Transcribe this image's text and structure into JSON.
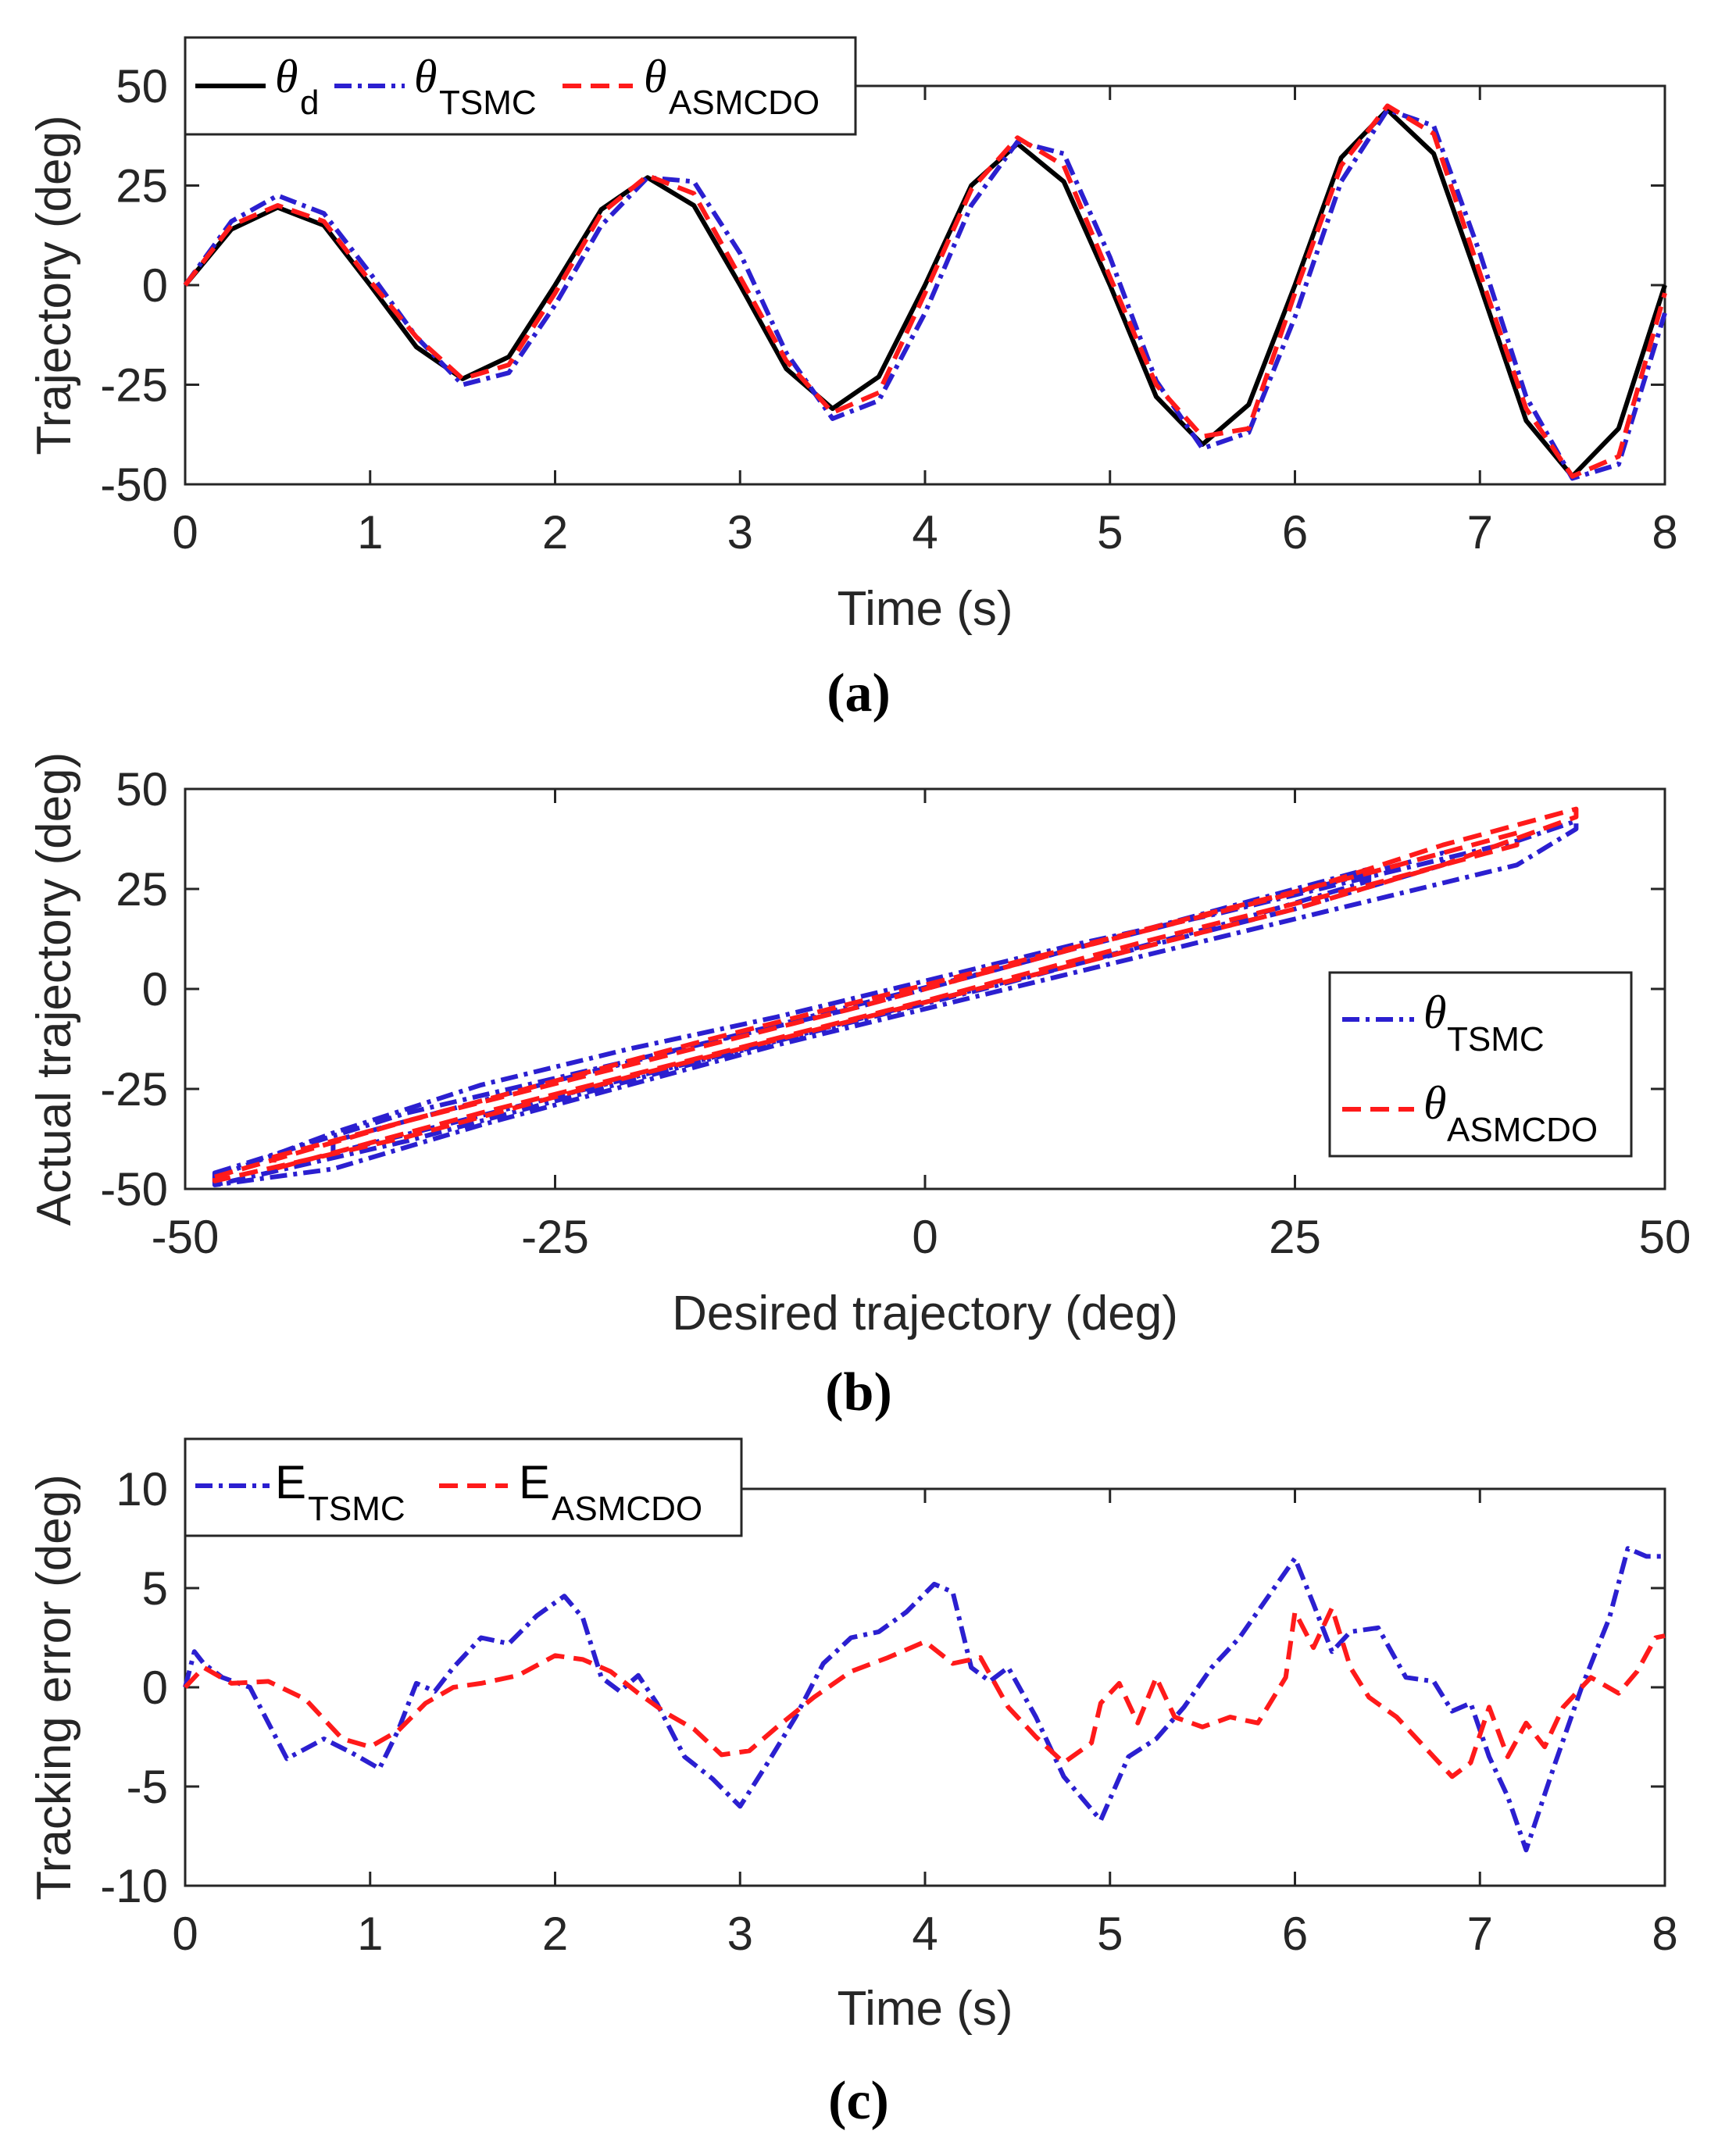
{
  "chart_data": [
    {
      "type": "line",
      "panel_label": "(a)",
      "xlabel": "Time (s)",
      "ylabel": "Trajectory (deg)",
      "xlim": [
        0,
        8
      ],
      "ylim": [
        -50,
        50
      ],
      "xticks": [
        0,
        1,
        2,
        3,
        4,
        5,
        6,
        7,
        8
      ],
      "yticks": [
        50,
        25,
        0,
        -25,
        -50
      ],
      "grid": false,
      "legend_placement": "top-left, horizontal",
      "x": [
        0,
        0.25,
        0.5,
        0.75,
        1,
        1.25,
        1.5,
        1.75,
        2,
        2.25,
        2.5,
        2.75,
        3,
        3.25,
        3.5,
        3.75,
        4,
        4.25,
        4.5,
        4.75,
        5,
        5.25,
        5.5,
        5.75,
        6,
        6.25,
        6.5,
        6.75,
        7,
        7.25,
        7.5,
        7.75,
        8
      ],
      "series": [
        {
          "name": "θ",
          "sub": "d",
          "color": "#000000",
          "style": "solid",
          "values": [
            0,
            14,
            19.5,
            15,
            0,
            -15.5,
            -23.5,
            -18,
            0,
            19,
            27,
            20,
            0,
            -21,
            -31,
            -23,
            0,
            25,
            35.5,
            26,
            0,
            -28,
            -40,
            -30,
            0,
            32,
            44,
            33,
            0,
            -34,
            -48,
            -36,
            0
          ]
        },
        {
          "name": "θ",
          "sub": "TSMC",
          "color": "#2b1fd0",
          "style": "dashdot",
          "values": [
            0,
            16,
            22.5,
            18,
            3,
            -13,
            -25,
            -22,
            -5,
            15,
            27,
            26,
            8,
            -17,
            -33.5,
            -29,
            -7,
            20,
            36,
            33,
            7,
            -24,
            -41,
            -37,
            -8,
            26,
            44,
            40,
            8,
            -28,
            -48.5,
            -45,
            -7
          ]
        },
        {
          "name": "θ",
          "sub": "ASMCDO",
          "color": "#ff1a1a",
          "style": "dashed",
          "values": [
            0,
            15,
            20,
            16,
            1,
            -13,
            -23.5,
            -20,
            -2,
            18,
            27.5,
            23,
            2,
            -19,
            -32,
            -27,
            -2,
            24,
            37,
            30,
            2,
            -25,
            -38,
            -36,
            -2,
            30,
            45,
            38,
            3,
            -31,
            -48,
            -43,
            -2
          ]
        }
      ]
    },
    {
      "type": "line",
      "panel_label": "(b)",
      "xlabel": "Desired trajectory (deg)",
      "ylabel": "Actual trajectory  (deg)",
      "xlim": [
        -50,
        50
      ],
      "ylim": [
        -50,
        50
      ],
      "xticks": [
        -50,
        -25,
        0,
        25,
        50
      ],
      "yticks": [
        50,
        25,
        0,
        -25,
        -50
      ],
      "grid": false,
      "legend_placement": "right, vertical",
      "series": [
        {
          "name": "θ",
          "sub": "TSMC",
          "color": "#2b1fd0",
          "style": "dashdot",
          "loops": [
            {
              "x": [
                -48,
                -40,
                -30,
                -20,
                -10,
                0,
                10,
                20,
                30,
                40,
                44
              ],
              "upper": [
                -47,
                -36,
                -24,
                -15,
                -7,
                2,
                11,
                19,
                28,
                37,
                42
              ],
              "lower": [
                -49,
                -45,
                -34,
                -24,
                -14,
                -5,
                4,
                13,
                22,
                31,
                40
              ]
            },
            {
              "x": [
                -48,
                -35,
                -20,
                -5,
                10,
                25,
                35
              ],
              "upper": [
                -46,
                -31,
                -18,
                -5,
                10,
                24,
                34
              ],
              "lower": [
                -49,
                -38,
                -23,
                -8,
                6,
                20,
                31
              ]
            },
            {
              "x": [
                -40,
                -25,
                -10,
                5,
                20,
                30
              ],
              "upper": [
                -38,
                -23,
                -9,
                5,
                20,
                30
              ],
              "lower": [
                -41,
                -27,
                -13,
                1,
                16,
                27
              ]
            }
          ]
        },
        {
          "name": "θ",
          "sub": "ASMCDO",
          "color": "#ff1a1a",
          "style": "dashed",
          "loops": [
            {
              "x": [
                -48,
                -35,
                -20,
                -5,
                10,
                25,
                35,
                44
              ],
              "upper": [
                -47,
                -33,
                -19,
                -5,
                10,
                24,
                36,
                45
              ],
              "lower": [
                -48,
                -37,
                -22,
                -8,
                6,
                20,
                31,
                43
              ]
            },
            {
              "x": [
                -44,
                -30,
                -15,
                0,
                15,
                30,
                40
              ],
              "upper": [
                -42,
                -28,
                -13,
                1,
                15,
                29,
                39
              ],
              "lower": [
                -45,
                -31,
                -17,
                -3,
                12,
                26,
                36
              ]
            }
          ]
        }
      ]
    },
    {
      "type": "line",
      "panel_label": "(c)",
      "xlabel": "Time (s)",
      "ylabel": "Tracking error (deg)",
      "xlim": [
        0,
        8
      ],
      "ylim": [
        -10,
        10
      ],
      "xticks": [
        0,
        1,
        2,
        3,
        4,
        5,
        6,
        7,
        8
      ],
      "yticks": [
        10,
        5,
        0,
        -5,
        -10
      ],
      "grid": false,
      "legend_placement": "top-left, horizontal",
      "series": [
        {
          "name": "E",
          "sub": "TSMC",
          "color": "#2b1fd0",
          "style": "dashdot",
          "x": [
            0,
            0.05,
            0.1,
            0.2,
            0.35,
            0.55,
            0.75,
            0.9,
            1.05,
            1.15,
            1.25,
            1.35,
            1.45,
            1.6,
            1.75,
            1.9,
            2.05,
            2.15,
            2.25,
            2.35,
            2.45,
            2.55,
            2.7,
            2.85,
            3.0,
            3.15,
            3.3,
            3.45,
            3.6,
            3.75,
            3.9,
            4.05,
            4.15,
            4.25,
            4.35,
            4.45,
            4.6,
            4.75,
            4.95,
            5.1,
            5.25,
            5.4,
            5.55,
            5.7,
            5.85,
            6.0,
            6.1,
            6.2,
            6.3,
            6.45,
            6.6,
            6.75,
            6.85,
            6.95,
            7.05,
            7.15,
            7.25,
            7.4,
            7.55,
            7.7,
            7.8,
            7.9,
            8.0
          ],
          "values": [
            0,
            1.8,
            1.2,
            0.5,
            0.0,
            -3.6,
            -2.6,
            -3.3,
            -4.1,
            -2.2,
            0.2,
            -0.2,
            1.0,
            2.5,
            2.2,
            3.6,
            4.6,
            3.5,
            0.5,
            -0.2,
            0.6,
            -0.8,
            -3.5,
            -4.6,
            -6.0,
            -3.8,
            -1.5,
            1.2,
            2.5,
            2.8,
            3.8,
            5.2,
            4.8,
            1.0,
            0.3,
            1.0,
            -1.5,
            -4.5,
            -6.7,
            -3.5,
            -2.6,
            -1.0,
            1.0,
            2.5,
            4.5,
            6.5,
            4.2,
            1.8,
            2.8,
            3.0,
            0.5,
            0.3,
            -1.2,
            -0.8,
            -3.5,
            -5.5,
            -8.2,
            -4.0,
            0.0,
            3.5,
            7.0,
            6.6,
            6.6
          ]
        },
        {
          "name": "E",
          "sub": "ASMCDO",
          "color": "#ff1a1a",
          "style": "dashed",
          "x": [
            0,
            0.1,
            0.25,
            0.45,
            0.65,
            0.85,
            1.0,
            1.15,
            1.3,
            1.45,
            1.6,
            1.8,
            2.0,
            2.15,
            2.3,
            2.45,
            2.6,
            2.75,
            2.9,
            3.05,
            3.2,
            3.4,
            3.6,
            3.8,
            4.0,
            4.15,
            4.3,
            4.45,
            4.6,
            4.75,
            4.9,
            4.95,
            5.05,
            5.15,
            5.25,
            5.35,
            5.5,
            5.65,
            5.8,
            5.95,
            6.0,
            6.1,
            6.2,
            6.3,
            6.4,
            6.55,
            6.7,
            6.85,
            6.95,
            7.05,
            7.15,
            7.25,
            7.35,
            7.45,
            7.6,
            7.75,
            7.85,
            7.95,
            8.0
          ],
          "values": [
            0,
            1.0,
            0.2,
            0.3,
            -0.6,
            -2.6,
            -3.0,
            -2.2,
            -0.8,
            0.0,
            0.2,
            0.6,
            1.6,
            1.4,
            0.8,
            -0.3,
            -1.3,
            -2.1,
            -3.4,
            -3.2,
            -2.0,
            -0.5,
            0.8,
            1.5,
            2.3,
            1.2,
            1.5,
            -1.0,
            -2.5,
            -3.8,
            -2.8,
            -0.8,
            0.2,
            -1.8,
            0.5,
            -1.5,
            -2.0,
            -1.5,
            -1.8,
            0.5,
            3.8,
            2.0,
            4.0,
            1.0,
            -0.5,
            -1.5,
            -3.0,
            -4.5,
            -3.8,
            -1.0,
            -3.5,
            -1.8,
            -3.0,
            -1.0,
            0.5,
            -0.3,
            0.8,
            2.5,
            2.6
          ]
        }
      ]
    }
  ]
}
